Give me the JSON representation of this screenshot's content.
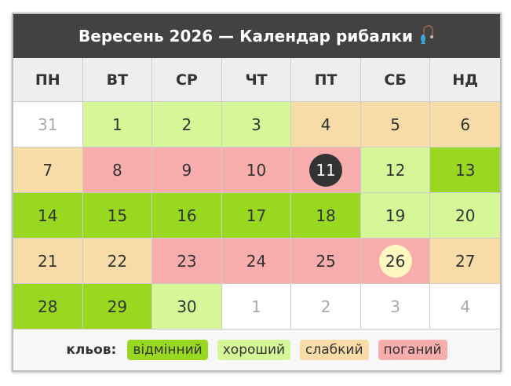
{
  "title": "Вересень 2026 — Календар рибалки",
  "title_icon": "fishing-rod-icon",
  "weekdays": [
    "ПН",
    "ВТ",
    "СР",
    "ЧТ",
    "ПТ",
    "СБ",
    "НД"
  ],
  "days": [
    {
      "d": "31",
      "t": "other"
    },
    {
      "d": "1",
      "t": "good"
    },
    {
      "d": "2",
      "t": "good"
    },
    {
      "d": "3",
      "t": "good"
    },
    {
      "d": "4",
      "t": "weak"
    },
    {
      "d": "5",
      "t": "weak"
    },
    {
      "d": "6",
      "t": "weak"
    },
    {
      "d": "7",
      "t": "weak"
    },
    {
      "d": "8",
      "t": "bad"
    },
    {
      "d": "9",
      "t": "bad"
    },
    {
      "d": "10",
      "t": "bad"
    },
    {
      "d": "11",
      "t": "bad",
      "today": true
    },
    {
      "d": "12",
      "t": "good"
    },
    {
      "d": "13",
      "t": "excellent"
    },
    {
      "d": "14",
      "t": "excellent"
    },
    {
      "d": "15",
      "t": "excellent"
    },
    {
      "d": "16",
      "t": "excellent"
    },
    {
      "d": "17",
      "t": "excellent"
    },
    {
      "d": "18",
      "t": "excellent"
    },
    {
      "d": "19",
      "t": "good"
    },
    {
      "d": "20",
      "t": "good"
    },
    {
      "d": "21",
      "t": "weak"
    },
    {
      "d": "22",
      "t": "weak"
    },
    {
      "d": "23",
      "t": "bad"
    },
    {
      "d": "24",
      "t": "bad"
    },
    {
      "d": "25",
      "t": "bad"
    },
    {
      "d": "26",
      "t": "bad",
      "highlight": true
    },
    {
      "d": "27",
      "t": "weak"
    },
    {
      "d": "28",
      "t": "excellent"
    },
    {
      "d": "29",
      "t": "excellent"
    },
    {
      "d": "30",
      "t": "good"
    },
    {
      "d": "1",
      "t": "other"
    },
    {
      "d": "2",
      "t": "other"
    },
    {
      "d": "3",
      "t": "other"
    },
    {
      "d": "4",
      "t": "other"
    }
  ],
  "legend": {
    "label": "кльов:",
    "items": [
      {
        "key": "excellent",
        "label": "відмінний",
        "color": "#98d821"
      },
      {
        "key": "good",
        "label": "хороший",
        "color": "#d6f797"
      },
      {
        "key": "weak",
        "label": "слабкий",
        "color": "#f7dca8"
      },
      {
        "key": "bad",
        "label": "поганий",
        "color": "#f8adad"
      }
    ]
  }
}
